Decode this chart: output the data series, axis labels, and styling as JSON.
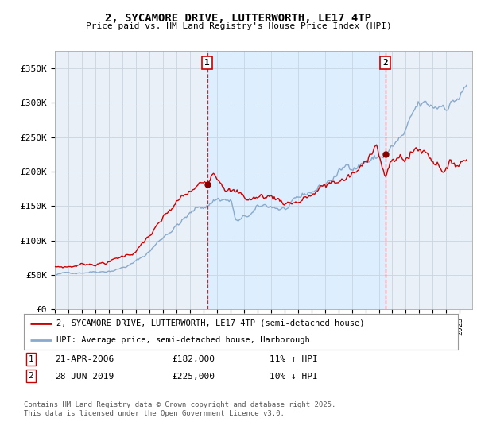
{
  "title": "2, SYCAMORE DRIVE, LUTTERWORTH, LE17 4TP",
  "subtitle": "Price paid vs. HM Land Registry's House Price Index (HPI)",
  "ylabel_ticks": [
    "£0",
    "£50K",
    "£100K",
    "£150K",
    "£200K",
    "£250K",
    "£300K",
    "£350K"
  ],
  "ytick_values": [
    0,
    50000,
    100000,
    150000,
    200000,
    250000,
    300000,
    350000
  ],
  "ylim": [
    0,
    375000
  ],
  "xlim_start": 1995.0,
  "xlim_end": 2025.92,
  "legend_line1": "2, SYCAMORE DRIVE, LUTTERWORTH, LE17 4TP (semi-detached house)",
  "legend_line2": "HPI: Average price, semi-detached house, Harborough",
  "transaction1_x": 2006.29,
  "transaction1_y": 182000,
  "transaction2_x": 2019.49,
  "transaction2_y": 225000,
  "footnote": "Contains HM Land Registry data © Crown copyright and database right 2025.\nThis data is licensed under the Open Government Licence v3.0.",
  "table_row1": [
    "1",
    "21-APR-2006",
    "£182,000",
    "11% ↑ HPI"
  ],
  "table_row2": [
    "2",
    "28-JUN-2019",
    "£225,000",
    "10% ↓ HPI"
  ],
  "red_color": "#cc0000",
  "blue_color": "#88aacc",
  "shade_color": "#ddeeff",
  "plot_bg_color": "#eaf0f8"
}
